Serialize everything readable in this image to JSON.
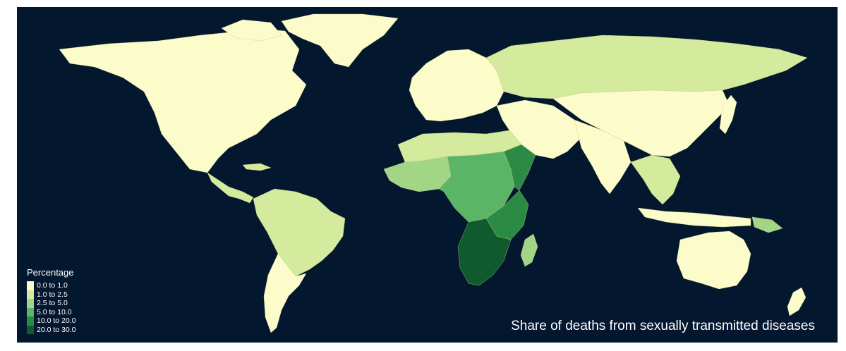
{
  "map": {
    "title": "Share of deaths from sexually transmitted diseases",
    "ocean_color": "#03172f",
    "border_color": "#c9cf93",
    "legend": {
      "title": "Percentage",
      "items": [
        {
          "label": "0.0 to 1.0",
          "color": "#fcfccb"
        },
        {
          "label": "1.0 to 2.5",
          "color": "#d4ea9c"
        },
        {
          "label": "2.5 to 5.0",
          "color": "#a3d586"
        },
        {
          "label": "5.0 to 10.0",
          "color": "#5bb567"
        },
        {
          "label": "10.0 to 20.0",
          "color": "#2b8b45"
        },
        {
          "label": "20.0 to 30.0",
          "color": "#0f5b2e"
        }
      ]
    },
    "regions": [
      {
        "name": "north-america",
        "class": 0
      },
      {
        "name": "greenland",
        "class": 0
      },
      {
        "name": "central-america",
        "class": 1
      },
      {
        "name": "south-america",
        "class": 1
      },
      {
        "name": "southern-cone",
        "class": 0
      },
      {
        "name": "europe",
        "class": 0
      },
      {
        "name": "russia",
        "class": 1
      },
      {
        "name": "middle-east",
        "class": 0
      },
      {
        "name": "south-asia",
        "class": 0
      },
      {
        "name": "east-asia",
        "class": 0
      },
      {
        "name": "southeast-asia",
        "class": 1
      },
      {
        "name": "japan",
        "class": 0
      },
      {
        "name": "sahel",
        "class": 1
      },
      {
        "name": "west-africa",
        "class": 2
      },
      {
        "name": "central-africa",
        "class": 3
      },
      {
        "name": "east-africa",
        "class": 4
      },
      {
        "name": "southern-africa",
        "class": 5
      },
      {
        "name": "madagascar",
        "class": 2
      },
      {
        "name": "indonesia",
        "class": 0
      },
      {
        "name": "papua-new-guinea",
        "class": 2
      },
      {
        "name": "australia",
        "class": 0
      },
      {
        "name": "new-zealand",
        "class": 0
      }
    ]
  }
}
